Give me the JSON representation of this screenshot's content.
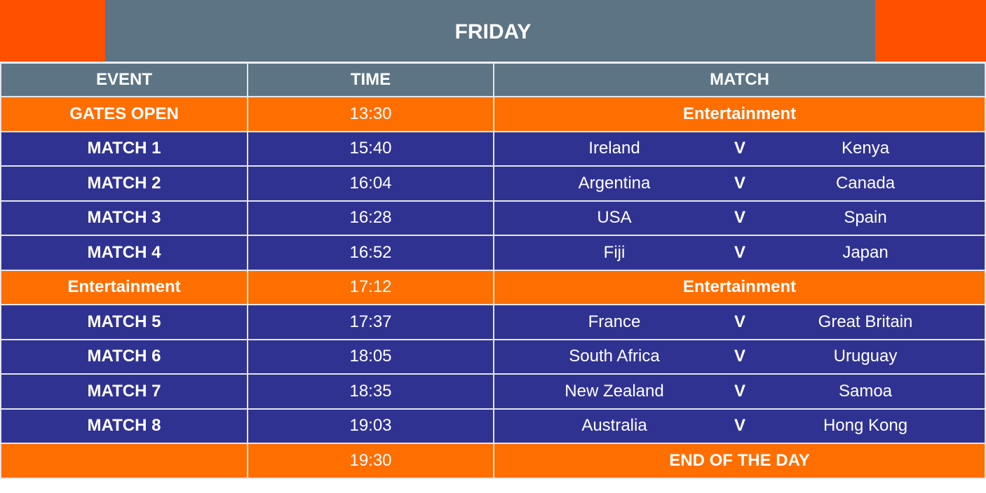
{
  "title": "FRIDAY",
  "colors": {
    "corner": "#ff5000",
    "header": "#5d7485",
    "break_row": "#ff6e00",
    "match_row": "#303292"
  },
  "headers": {
    "event": "EVENT",
    "time": "TIME",
    "match": "MATCH"
  },
  "versus": "V",
  "rows": [
    {
      "type": "break",
      "event": "GATES OPEN",
      "time": "13:30",
      "match": "Entertainment"
    },
    {
      "type": "match",
      "event": "MATCH 1",
      "time": "15:40",
      "team1": "Ireland",
      "team2": "Kenya"
    },
    {
      "type": "match",
      "event": "MATCH 2",
      "time": "16:04",
      "team1": "Argentina",
      "team2": "Canada"
    },
    {
      "type": "match",
      "event": "MATCH 3",
      "time": "16:28",
      "team1": "USA",
      "team2": "Spain"
    },
    {
      "type": "match",
      "event": "MATCH 4",
      "time": "16:52",
      "team1": "Fiji",
      "team2": "Japan"
    },
    {
      "type": "break",
      "event": "Entertainment",
      "time": "17:12",
      "match": "Entertainment"
    },
    {
      "type": "match",
      "event": "MATCH 5",
      "time": "17:37",
      "team1": "France",
      "team2": "Great Britain"
    },
    {
      "type": "match",
      "event": "MATCH 6",
      "time": "18:05",
      "team1": "South Africa",
      "team2": "Uruguay"
    },
    {
      "type": "match",
      "event": "MATCH 7",
      "time": "18:35",
      "team1": "New Zealand",
      "team2": "Samoa"
    },
    {
      "type": "match",
      "event": "MATCH 8",
      "time": "19:03",
      "team1": "Australia",
      "team2": "Hong Kong"
    },
    {
      "type": "break",
      "event": "",
      "time": "19:30",
      "match": "END OF THE DAY"
    }
  ]
}
